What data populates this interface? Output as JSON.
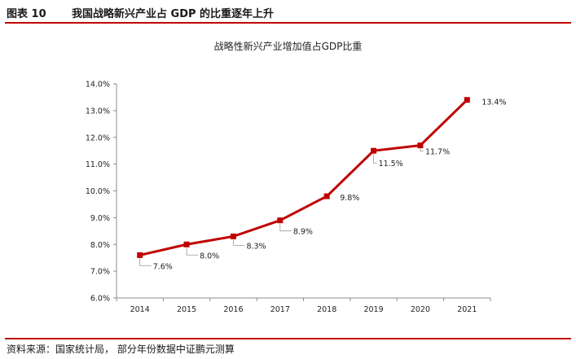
{
  "header": {
    "figure_label": "图表 10",
    "figure_title": "我国战略新兴产业占 GDP 的比重逐年上升"
  },
  "footer": {
    "source": "资料来源：国家统计局，  部分年份数据中证鹏元测算"
  },
  "colors": {
    "accent": "#c00000",
    "line": "#c00000"
  },
  "chart_data": {
    "type": "line",
    "title": "战略性新兴产业增加值占GDP比重",
    "xlabel": "",
    "ylabel": "",
    "categories": [
      "2014",
      "2015",
      "2016",
      "2017",
      "2018",
      "2019",
      "2020",
      "2021"
    ],
    "values": [
      7.6,
      8.0,
      8.3,
      8.9,
      9.8,
      11.5,
      11.7,
      13.4
    ],
    "data_labels": [
      "7.6%",
      "8.0%",
      "8.3%",
      "8.9%",
      "9.8%",
      "11.5%",
      "11.7%",
      "13.4%"
    ],
    "ylim": [
      6.0,
      14.0
    ],
    "yticks": [
      6.0,
      7.0,
      8.0,
      9.0,
      10.0,
      11.0,
      12.0,
      13.0,
      14.0
    ],
    "ytick_labels": [
      "6.0%",
      "7.0%",
      "8.0%",
      "9.0%",
      "10.0%",
      "11.0%",
      "12.0%",
      "13.0%",
      "14.0%"
    ],
    "grid": false,
    "legend": "none"
  }
}
